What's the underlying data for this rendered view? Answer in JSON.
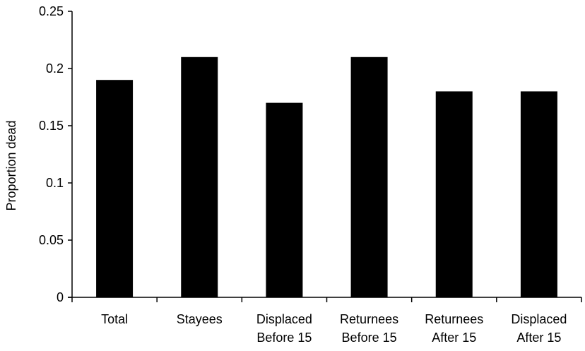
{
  "chart_data": {
    "type": "bar",
    "title": "",
    "xlabel": "",
    "ylabel": "Proportion dead",
    "ylim": [
      0,
      0.25
    ],
    "yticks": [
      "0",
      "0.05",
      "0.1",
      "0.15",
      "0.2",
      "0.25"
    ],
    "ytick_values": [
      0,
      0.05,
      0.1,
      0.15,
      0.2,
      0.25
    ],
    "categories": [
      [
        "Total"
      ],
      [
        "Stayees"
      ],
      [
        "Displaced",
        "Before 15"
      ],
      [
        "Returnees",
        "Before 15"
      ],
      [
        "Returnees",
        "After 15"
      ],
      [
        "Displaced",
        "After 15"
      ]
    ],
    "values": [
      0.19,
      0.21,
      0.17,
      0.21,
      0.18,
      0.18
    ],
    "grid": false,
    "legend": "none",
    "bar_color": "#000000"
  }
}
